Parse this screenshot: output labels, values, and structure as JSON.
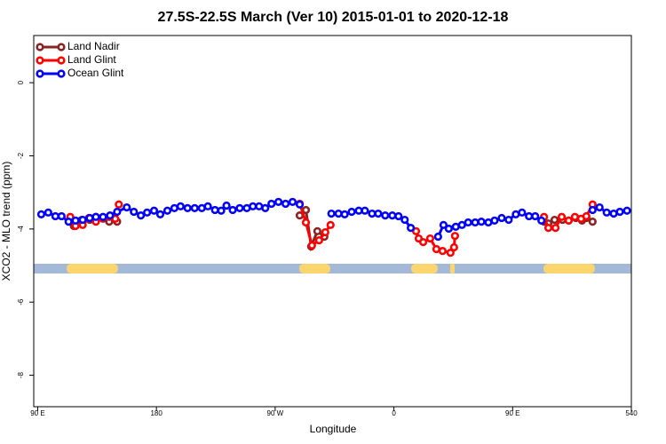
{
  "chart_data": {
    "type": "line",
    "title": "27.5S-22.5S March (Ver 10)   2015-01-01 to 2020-12-18",
    "x_label": "Longitude",
    "y_label": "XCO2 - MLO trend (ppm)",
    "xlim": [
      87,
      540
    ],
    "ylim": [
      -8.86,
      1.29
    ],
    "xticks": [
      {
        "value": 90,
        "label": "90 E"
      },
      180,
      {
        "value": 270,
        "label": "90 W"
      },
      {
        "value": 360,
        "label": "0"
      },
      {
        "value": 450,
        "label": "90 E"
      },
      540
    ],
    "yticks": [
      0,
      -2,
      -4,
      -6,
      -8
    ],
    "legend": "top-left",
    "series": [
      {
        "name": "Land Nadir",
        "color": "#8b2323",
        "x": [
          117.4,
          123.4,
          129.4,
          134.1,
          139.5,
          144.2,
          150.2,
          null,
          288.6,
          293.3,
          297.3,
          302.0,
          307.3,
          null,
          473.8,
          477.1,
          481.8,
          487.8,
          492.5,
          497.9,
          502.6,
          505.9,
          510.6
        ],
        "values": [
          -3.92,
          -3.75,
          -3.75,
          -3.67,
          -3.72,
          -3.8,
          -3.8,
          null,
          -3.63,
          -3.48,
          -4.48,
          -4.06,
          -4.21,
          null,
          -3.8,
          -3.85,
          -3.75,
          -3.75,
          -3.77,
          -3.7,
          -3.77,
          -3.7,
          -3.8
        ]
      },
      {
        "name": "Land Glint",
        "color": "#ff0000",
        "x": [
          114.7,
          118.7,
          124.1,
          128.8,
          134.1,
          138.8,
          144.2,
          148.8,
          151.5,
          null,
          288.6,
          293.3,
          297.9,
          303.3,
          308.0,
          312.0,
          null,
          376.8,
          378.8,
          382.2,
          387.5,
          392.2,
          396.9,
          402.9,
          405.6,
          406.3,
          null,
          473.8,
          477.1,
          482.5,
          487.2,
          492.5,
          497.2,
          501.9,
          505.9,
          510.6
        ],
        "values": [
          -3.67,
          -3.92,
          -3.89,
          -3.7,
          -3.8,
          -3.7,
          -3.67,
          -3.72,
          -3.33,
          null,
          -3.31,
          -3.82,
          -4.45,
          -4.31,
          -4.09,
          -3.89,
          null,
          -4.06,
          -4.26,
          -4.36,
          -4.26,
          -4.55,
          -4.6,
          -4.65,
          -4.5,
          -4.19,
          null,
          -3.67,
          -3.97,
          -3.97,
          -3.67,
          -3.77,
          -3.67,
          -3.72,
          -3.65,
          -3.33
        ]
      },
      {
        "name": "Ocean Glint",
        "color": "#0000ff",
        "x": [
          92.7,
          98.0,
          103.4,
          108.1,
          113.4,
          118.7,
          124.1,
          129.4,
          134.1,
          139.5,
          144.8,
          150.2,
          157.5,
          162.9,
          168.2,
          172.9,
          178.2,
          182.9,
          188.3,
          193.6,
          198.3,
          203.6,
          209.0,
          214.4,
          219.0,
          224.4,
          229.1,
          233.1,
          237.8,
          243.1,
          248.5,
          253.1,
          257.8,
          262.5,
          267.2,
          272.5,
          277.9,
          283.2,
          288.6,
          null,
          312.6,
          318.0,
          322.7,
          328.0,
          333.4,
          338.0,
          343.4,
          348.1,
          353.4,
          358.8,
          363.5,
          368.2,
          372.8,
          null,
          393.5,
          397.6,
          401.6,
          406.9,
          411.6,
          416.3,
          421.6,
          426.3,
          431.6,
          436.3,
          441.7,
          447.0,
          452.4,
          457.1,
          462.4,
          467.1,
          471.8,
          null,
          510.6,
          515.9,
          521.3,
          526.6,
          531.3,
          536.7
        ],
        "values": [
          -3.6,
          -3.55,
          -3.65,
          -3.65,
          -3.8,
          -3.77,
          -3.75,
          -3.7,
          -3.67,
          -3.67,
          -3.63,
          -3.53,
          -3.41,
          -3.53,
          -3.63,
          -3.55,
          -3.5,
          -3.6,
          -3.5,
          -3.43,
          -3.38,
          -3.43,
          -3.43,
          -3.43,
          -3.38,
          -3.48,
          -3.5,
          -3.36,
          -3.48,
          -3.43,
          -3.43,
          -3.38,
          -3.38,
          -3.43,
          -3.31,
          -3.26,
          -3.31,
          -3.26,
          -3.33,
          null,
          -3.58,
          -3.58,
          -3.6,
          -3.53,
          -3.5,
          -3.5,
          -3.58,
          -3.58,
          -3.63,
          -3.63,
          -3.65,
          -3.75,
          -3.97,
          null,
          -4.21,
          -3.89,
          -3.99,
          -3.94,
          -3.89,
          -3.82,
          -3.82,
          -3.8,
          -3.82,
          -3.77,
          -3.7,
          -3.75,
          -3.6,
          -3.55,
          -3.65,
          -3.65,
          -3.77,
          null,
          -3.48,
          -3.41,
          -3.55,
          -3.58,
          -3.53,
          -3.5
        ]
      }
    ]
  }
}
